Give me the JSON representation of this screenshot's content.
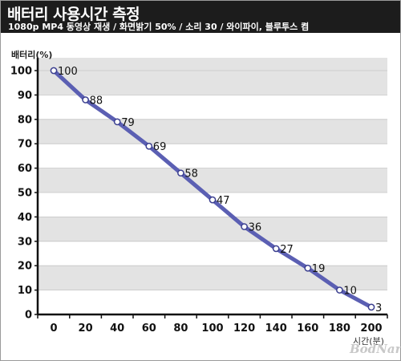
{
  "header": {
    "title": "배터리 사용시간 측정",
    "subtitle": "1080p MP4 동영상 재생 / 화면밝기 50% / 소리 30 / 와이파이, 블루투스 켬"
  },
  "watermark": "BodNara",
  "colors": {
    "header_bg": "#1c1c1c",
    "line": "#5b5fb3",
    "band": "#e3e3e3",
    "plot_bg": "#ffffff"
  },
  "chart_data": {
    "type": "line",
    "title": "배터리 사용시간 측정",
    "subtitle": "1080p MP4 동영상 재생 / 화면밝기 50% / 소리 30 / 와이파이, 블루투스 켬",
    "xlabel": "시간(분)",
    "ylabel": "배터리(%)",
    "x": [
      0,
      20,
      40,
      60,
      80,
      100,
      120,
      140,
      160,
      180,
      200
    ],
    "series": [
      {
        "values": [
          100,
          88,
          79,
          69,
          58,
          47,
          36,
          27,
          19,
          10,
          3
        ]
      }
    ],
    "xlim": [
      0,
      200
    ],
    "ylim": [
      0,
      100
    ],
    "x_ticks": [
      "0",
      "20",
      "40",
      "60",
      "80",
      "100",
      "120",
      "140",
      "160",
      "180",
      "200"
    ],
    "y_ticks": [
      "0",
      "10",
      "20",
      "30",
      "40",
      "50",
      "60",
      "70",
      "80",
      "90",
      "100"
    ],
    "data_labels": [
      "100",
      "88",
      "79",
      "69",
      "58",
      "47",
      "36",
      "27",
      "19",
      "10",
      "3"
    ],
    "grid": "alternating horizontal bands",
    "legend": "none"
  }
}
